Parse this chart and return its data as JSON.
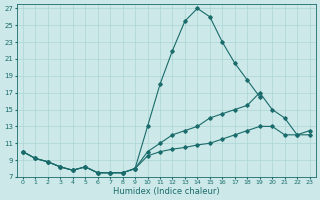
{
  "xlabel": "Humidex (Indice chaleur)",
  "xlim": [
    -0.5,
    23.5
  ],
  "ylim": [
    7,
    27.5
  ],
  "yticks": [
    7,
    9,
    11,
    13,
    15,
    17,
    19,
    21,
    23,
    25,
    27
  ],
  "xticks": [
    0,
    1,
    2,
    3,
    4,
    5,
    6,
    7,
    8,
    9,
    10,
    11,
    12,
    13,
    14,
    15,
    16,
    17,
    18,
    19,
    20,
    21,
    22,
    23
  ],
  "background_color": "#cce8e8",
  "line_color": "#1a6b6b",
  "grid_color": "#aad4d4",
  "series": [
    {
      "x": [
        0,
        1,
        2,
        3,
        4,
        5,
        6,
        7,
        8,
        9,
        10,
        11,
        12,
        13,
        14,
        15,
        16,
        17,
        18,
        19
      ],
      "y": [
        10,
        9.2,
        8.8,
        8.2,
        7.8,
        8.2,
        7.5,
        7.5,
        7.5,
        8.0,
        13,
        18,
        22,
        25.5,
        27,
        26,
        23,
        20.5,
        18.5,
        16.5
      ]
    },
    {
      "x": [
        0,
        1,
        2,
        3,
        4,
        5,
        6,
        7,
        8,
        9,
        10,
        11,
        12,
        13,
        14,
        15,
        16,
        17,
        18,
        19,
        20,
        21,
        22,
        23
      ],
      "y": [
        10,
        9.2,
        8.8,
        8.2,
        7.8,
        8.2,
        7.5,
        7.5,
        7.5,
        8.0,
        10,
        11,
        12,
        12.5,
        13,
        14,
        14.5,
        15,
        15.5,
        17,
        15,
        14,
        12,
        12
      ]
    },
    {
      "x": [
        0,
        1,
        2,
        3,
        4,
        5,
        6,
        7,
        8,
        9,
        10,
        11,
        12,
        13,
        14,
        15,
        16,
        17,
        18,
        19,
        20,
        21,
        22,
        23
      ],
      "y": [
        10,
        9.2,
        8.8,
        8.2,
        7.8,
        8.2,
        7.5,
        7.5,
        7.5,
        8.0,
        9.5,
        10,
        10.3,
        10.5,
        10.8,
        11,
        11.5,
        12,
        12.5,
        13,
        13,
        12,
        12,
        12.5
      ]
    }
  ]
}
